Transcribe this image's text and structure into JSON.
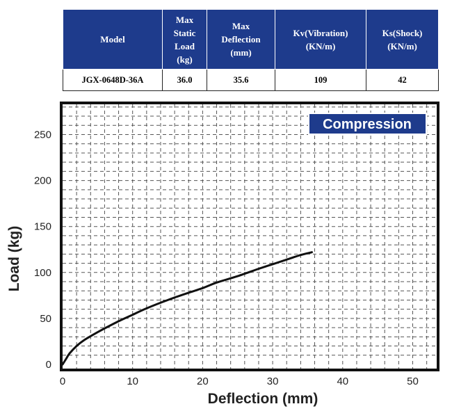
{
  "table": {
    "headers": [
      {
        "lines": [
          "Max",
          "Static",
          "Load",
          "(kg)"
        ],
        "key": "max_static_load"
      },
      {
        "lines": [
          "Max",
          "Deflection",
          "(mm)"
        ],
        "key": "max_deflection"
      },
      {
        "lines": [
          "Kv(Vibration)",
          "(KN/m)"
        ],
        "key": "kv"
      },
      {
        "lines": [
          "Ks(Shock)",
          "(KN/m)"
        ],
        "key": "ks"
      }
    ],
    "model_header": "Model",
    "row": {
      "model": "JGX-0648D-36A",
      "max_static_load": "36.0",
      "max_deflection": "35.6",
      "kv": "109",
      "ks": "42"
    }
  },
  "chart_data": {
    "type": "line",
    "legend": "Compression",
    "legend_position": "top-right",
    "xlabel": "Deflection (mm)",
    "ylabel": "Load (kg)",
    "xlim": [
      0,
      53
    ],
    "ylim": [
      0,
      290
    ],
    "xticks": [
      "0",
      "10",
      "20",
      "30",
      "40",
      "50"
    ],
    "yticks": [
      "0",
      "50",
      "100",
      "150",
      "200",
      "250"
    ],
    "grid": true,
    "colors": {
      "line": "#111111",
      "legend_bg": "#1e3b8c",
      "table_header_bg": "#1e3b8c"
    },
    "series": [
      {
        "x": [
          0,
          0.5,
          1,
          2,
          3,
          5,
          8,
          10,
          12,
          15,
          18,
          20,
          22,
          25,
          28,
          30,
          32,
          34,
          35.6
        ],
        "y": [
          0,
          6,
          12,
          20,
          26,
          35,
          47,
          54,
          61,
          70,
          78,
          83,
          89,
          96,
          104,
          109,
          114,
          119,
          122
        ]
      }
    ]
  }
}
